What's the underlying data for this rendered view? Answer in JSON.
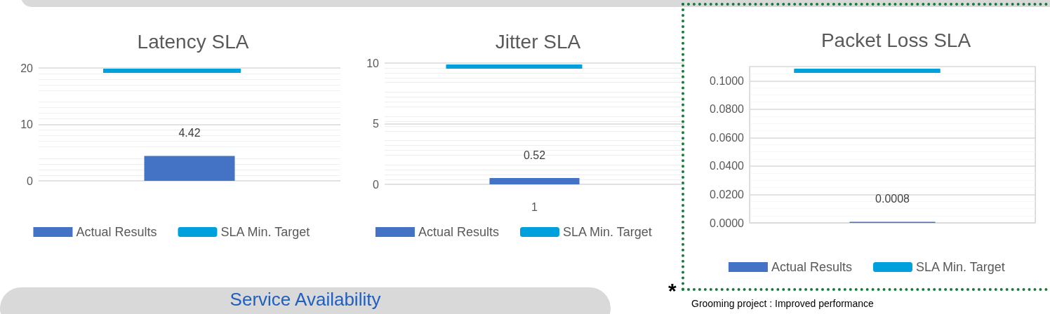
{
  "chart_data": [
    {
      "type": "bar",
      "title": "Latency SLA",
      "categories": [
        null
      ],
      "series": [
        {
          "name": "Actual Results",
          "color": "#4472c4",
          "values": [
            4.42
          ],
          "value_labels": [
            "4.42"
          ]
        }
      ],
      "ref_lines": [
        {
          "axis": "y",
          "value": 19.5,
          "label": "SLA Min. Target",
          "color": "#00a0dc"
        }
      ],
      "ylim": [
        0,
        20
      ],
      "yticks": [
        0,
        10,
        20
      ],
      "grid": "y",
      "legend": "bottom",
      "annotations": [
        "Service Availability"
      ]
    },
    {
      "type": "bar",
      "title": "Jitter SLA",
      "categories": [
        "1"
      ],
      "series": [
        {
          "name": "Actual Results",
          "color": "#4472c4",
          "values": [
            0.52
          ],
          "value_labels": [
            "0.52"
          ]
        }
      ],
      "ref_lines": [
        {
          "axis": "y",
          "value": 9.7,
          "label": "SLA Min. Target",
          "color": "#00a0dc"
        }
      ],
      "ylim": [
        0,
        10
      ],
      "yticks": [
        0,
        5,
        10
      ],
      "grid": "y",
      "legend": "bottom"
    },
    {
      "type": "bar",
      "title": "Packet Loss SLA",
      "categories": [
        null
      ],
      "series": [
        {
          "name": "Actual Results",
          "color": "#4472c4",
          "values": [
            0.0008
          ],
          "value_labels": [
            "0.0008"
          ]
        }
      ],
      "ref_lines": [
        {
          "axis": "y",
          "value": 0.107,
          "label": "SLA Min. Target",
          "color": "#00a0dc"
        }
      ],
      "ylim": [
        0,
        0.11
      ],
      "yticks": [
        {
          "value": 0,
          "label": "0.0000"
        },
        {
          "value": 0.02,
          "label": "0.0200"
        },
        {
          "value": 0.04,
          "label": "0.0400"
        },
        {
          "value": 0.06,
          "label": "0.0600"
        },
        {
          "value": 0.08,
          "label": "0.0800"
        },
        {
          "value": 0.1,
          "label": "0.1000"
        }
      ],
      "grid": true,
      "legend": "bottom",
      "annotations": [
        "*",
        "Grooming project : Improved performance"
      ]
    }
  ]
}
